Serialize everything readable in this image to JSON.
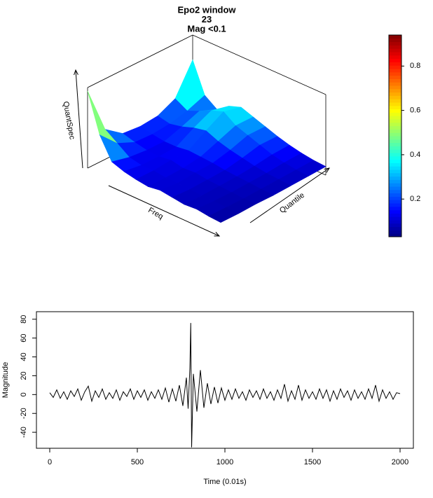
{
  "chart_data": [
    {
      "type": "surface3d",
      "title_lines": [
        "Epo2 window",
        "23",
        "Mag <0.1"
      ],
      "zlabel": "QuantSpec",
      "xlabel": "Freq",
      "ylabel": "Quantile",
      "z": [
        [
          0.9,
          0.45,
          0.2,
          0.15,
          0.12,
          0.1,
          0.12,
          0.1,
          0.08,
          0.09,
          0.07,
          0.06
        ],
        [
          0.35,
          0.25,
          0.15,
          0.12,
          0.12,
          0.1,
          0.1,
          0.09,
          0.08,
          0.08,
          0.07,
          0.06
        ],
        [
          0.2,
          0.16,
          0.13,
          0.12,
          0.14,
          0.11,
          0.12,
          0.1,
          0.09,
          0.08,
          0.07,
          0.07
        ],
        [
          0.18,
          0.15,
          0.13,
          0.13,
          0.15,
          0.14,
          0.13,
          0.11,
          0.1,
          0.09,
          0.08,
          0.07
        ],
        [
          0.2,
          0.17,
          0.2,
          0.25,
          0.28,
          0.22,
          0.18,
          0.15,
          0.12,
          0.1,
          0.09,
          0.08
        ],
        [
          0.3,
          0.22,
          0.28,
          0.35,
          0.4,
          0.3,
          0.25,
          0.2,
          0.15,
          0.12,
          0.1,
          0.09
        ],
        [
          0.65,
          0.3,
          0.2,
          0.3,
          0.35,
          0.3,
          0.25,
          0.2,
          0.16,
          0.13,
          0.11,
          0.1
        ]
      ],
      "colorbar": {
        "lim": [
          0.03,
          0.94
        ],
        "ticks": [
          0.2,
          0.4,
          0.6,
          0.8
        ]
      }
    },
    {
      "type": "line",
      "xlabel": "Time (0.01s)",
      "ylabel": "Magnitude",
      "xlim": [
        -76,
        2076
      ],
      "ylim": [
        -57,
        88
      ],
      "xticks": [
        0,
        500,
        1000,
        1500,
        2000
      ],
      "yticks": [
        -40,
        -20,
        0,
        20,
        40,
        60,
        80
      ],
      "color": "#000000",
      "x": [
        0,
        20,
        40,
        60,
        80,
        100,
        120,
        140,
        160,
        180,
        200,
        220,
        240,
        260,
        280,
        300,
        320,
        340,
        360,
        380,
        400,
        420,
        440,
        460,
        480,
        500,
        520,
        540,
        560,
        580,
        600,
        620,
        640,
        660,
        680,
        700,
        720,
        740,
        760,
        780,
        790,
        800,
        805,
        810,
        820,
        840,
        860,
        880,
        900,
        920,
        940,
        960,
        980,
        1000,
        1020,
        1040,
        1060,
        1080,
        1100,
        1120,
        1140,
        1160,
        1180,
        1200,
        1220,
        1240,
        1260,
        1280,
        1300,
        1320,
        1340,
        1360,
        1380,
        1400,
        1420,
        1440,
        1460,
        1480,
        1500,
        1520,
        1540,
        1560,
        1580,
        1600,
        1620,
        1640,
        1660,
        1680,
        1700,
        1720,
        1740,
        1760,
        1780,
        1800,
        1820,
        1840,
        1860,
        1880,
        1900,
        1920,
        1940,
        1960,
        1980,
        2000
      ],
      "values": [
        2,
        -3,
        5,
        -4,
        3,
        -5,
        4,
        -2,
        6,
        -6,
        3,
        9,
        -7,
        4,
        -3,
        6,
        -5,
        2,
        -4,
        5,
        -6,
        3,
        -2,
        6,
        -5,
        4,
        -3,
        5,
        -6,
        3,
        -4,
        5,
        -5,
        7,
        -8,
        6,
        -7,
        10,
        -12,
        18,
        -15,
        28,
        76,
        -56,
        22,
        -18,
        26,
        -14,
        12,
        -10,
        8,
        -9,
        7,
        -6,
        5,
        -5,
        6,
        -4,
        3,
        -6,
        5,
        -3,
        4,
        -5,
        6,
        -4,
        3,
        -6,
        5,
        -4,
        11,
        -7,
        4,
        -5,
        10,
        -6,
        5,
        -4,
        3,
        -5,
        6,
        -4,
        5,
        -7,
        4,
        -5,
        6,
        -3,
        4,
        -6,
        5,
        -4,
        3,
        -5,
        6,
        -4,
        10,
        -7,
        5,
        -4,
        3,
        -5,
        2,
        1
      ]
    }
  ]
}
